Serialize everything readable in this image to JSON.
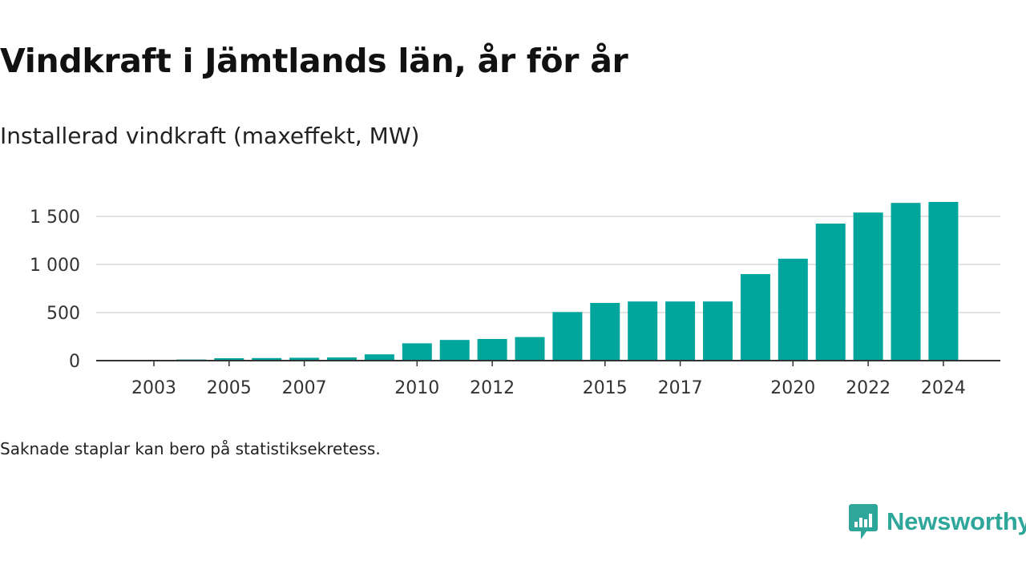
{
  "page": {
    "title": "Vindkraft i Jämtlands län, år för år",
    "subtitle": "Installerad vindkraft (maxeffekt, MW)",
    "note": "Saknade staplar kan bero på statistiksekretess.",
    "brand": "Newsworthy"
  },
  "colors": {
    "bar": "#00a59b",
    "grid": "#d9d9d9",
    "axis": "#333333",
    "brand": "#2ea69a"
  },
  "chart_data": {
    "type": "bar",
    "categories": [
      "2003",
      "2004",
      "2005",
      "2006",
      "2007",
      "2008",
      "2009",
      "2010",
      "2011",
      "2012",
      "2013",
      "2014",
      "2015",
      "2016",
      "2017",
      "2018",
      "2019",
      "2020",
      "2021",
      "2022",
      "2023",
      "2024"
    ],
    "values": [
      2,
      12,
      25,
      27,
      30,
      33,
      65,
      180,
      215,
      225,
      245,
      505,
      600,
      615,
      615,
      615,
      900,
      1060,
      1425,
      1540,
      1640,
      1650
    ],
    "x_tick_labels": [
      "2003",
      "2005",
      "2007",
      "2010",
      "2012",
      "2015",
      "2017",
      "2020",
      "2022",
      "2024"
    ],
    "y_ticks": [
      0,
      500,
      1000,
      1500
    ],
    "y_tick_labels": [
      "0",
      "500",
      "1 000",
      "1 500"
    ],
    "ylim": [
      0,
      1700
    ],
    "title": "Vindkraft i Jämtlands län, år för år",
    "subtitle": "Installerad vindkraft (maxeffekt, MW)",
    "xlabel": "",
    "ylabel": "",
    "grid": true,
    "legend": "none"
  }
}
